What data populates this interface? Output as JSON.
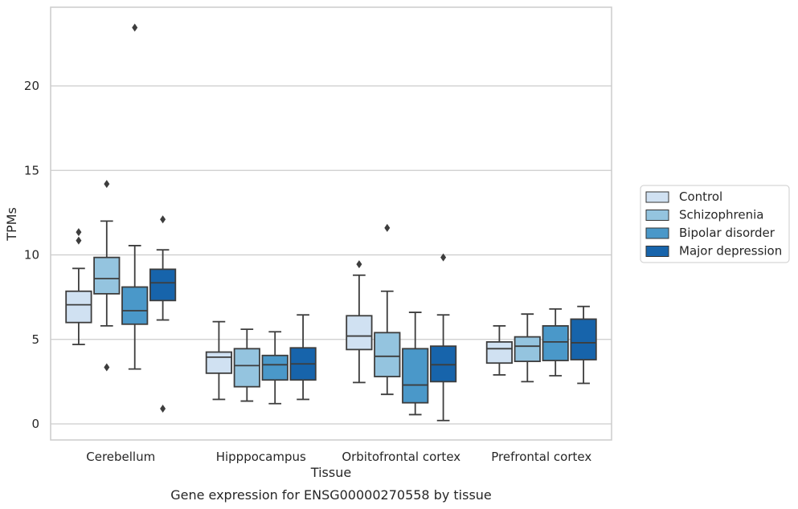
{
  "chart_data": {
    "type": "box",
    "title": "Gene expression for ENSG00000270558 by tissue",
    "xlabel": "Tissue",
    "ylabel": "TPMs",
    "ylim": [
      -1,
      24.6
    ],
    "yticks": [
      0,
      5,
      10,
      15,
      20
    ],
    "grid": "horizontal",
    "legend_placement": "right",
    "categories": [
      "Cerebellum",
      "Hipppocampus",
      "Orbitofrontal cortex",
      "Prefrontal cortex"
    ],
    "series": [
      {
        "name": "Control",
        "color": "#d0e1f2",
        "boxes": [
          {
            "whislo": 4.7,
            "q1": 6.0,
            "med": 7.05,
            "q3": 7.85,
            "whishi": 9.2,
            "fliers": [
              10.85,
              11.35
            ]
          },
          {
            "whislo": 1.45,
            "q1": 3.0,
            "med": 3.95,
            "q3": 4.25,
            "whishi": 6.05,
            "fliers": []
          },
          {
            "whislo": 2.45,
            "q1": 4.4,
            "med": 5.2,
            "q3": 6.4,
            "whishi": 8.8,
            "fliers": [
              9.45
            ]
          },
          {
            "whislo": 2.9,
            "q1": 3.6,
            "med": 4.45,
            "q3": 4.85,
            "whishi": 5.8,
            "fliers": []
          }
        ]
      },
      {
        "name": "Schizophrenia",
        "color": "#94c4df",
        "boxes": [
          {
            "whislo": 5.8,
            "q1": 7.7,
            "med": 8.6,
            "q3": 9.85,
            "whishi": 12.0,
            "fliers": [
              3.35,
              14.2
            ]
          },
          {
            "whislo": 1.35,
            "q1": 2.2,
            "med": 3.45,
            "q3": 4.45,
            "whishi": 5.6,
            "fliers": []
          },
          {
            "whislo": 1.75,
            "q1": 2.8,
            "med": 4.0,
            "q3": 5.4,
            "whishi": 7.85,
            "fliers": [
              11.6
            ]
          },
          {
            "whislo": 2.5,
            "q1": 3.7,
            "med": 4.6,
            "q3": 5.15,
            "whishi": 6.5,
            "fliers": []
          }
        ]
      },
      {
        "name": "Bipolar disorder",
        "color": "#4a98c9",
        "boxes": [
          {
            "whislo": 3.25,
            "q1": 5.9,
            "med": 6.7,
            "q3": 8.1,
            "whishi": 10.55,
            "fliers": [
              23.45
            ]
          },
          {
            "whislo": 1.2,
            "q1": 2.6,
            "med": 3.5,
            "q3": 4.05,
            "whishi": 5.45,
            "fliers": []
          },
          {
            "whislo": 0.55,
            "q1": 1.25,
            "med": 2.3,
            "q3": 4.45,
            "whishi": 6.6,
            "fliers": []
          },
          {
            "whislo": 2.85,
            "q1": 3.75,
            "med": 4.85,
            "q3": 5.8,
            "whishi": 6.8,
            "fliers": []
          }
        ]
      },
      {
        "name": "Major depression",
        "color": "#1764ab",
        "boxes": [
          {
            "whislo": 6.15,
            "q1": 7.3,
            "med": 8.35,
            "q3": 9.15,
            "whishi": 10.3,
            "fliers": [
              0.9,
              12.1
            ]
          },
          {
            "whislo": 1.45,
            "q1": 2.6,
            "med": 3.55,
            "q3": 4.5,
            "whishi": 6.45,
            "fliers": []
          },
          {
            "whislo": 0.2,
            "q1": 2.5,
            "med": 3.5,
            "q3": 4.6,
            "whishi": 6.45,
            "fliers": [
              9.85
            ]
          },
          {
            "whislo": 2.4,
            "q1": 3.8,
            "med": 4.8,
            "q3": 6.2,
            "whishi": 6.95,
            "fliers": []
          }
        ]
      }
    ]
  }
}
